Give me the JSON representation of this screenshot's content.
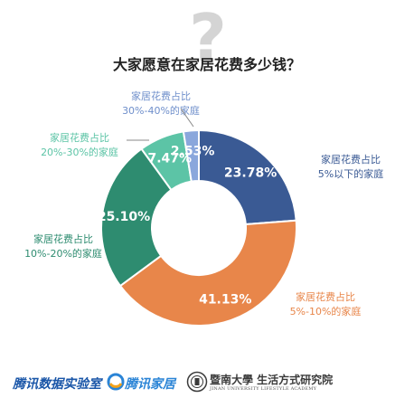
{
  "title": "大家愿意在家居花费多少钱？",
  "decoration": {
    "question_mark": "?"
  },
  "footer": {
    "brand_lab": "腾讯数据实验室",
    "brand_home": "腾讯家居",
    "brand_univ_cn": "暨南大學 生活方式研究院",
    "brand_univ_en": "JINAN UNIVERSITY LIFESTYLE ACADEMY"
  },
  "chart_data": {
    "type": "pie",
    "variant": "donut",
    "title": "大家愿意在家居花费多少钱？",
    "slices": [
      {
        "label": [
          "家居花费占比",
          "5%以下的家庭"
        ],
        "value": 23.78,
        "display": "23.78%",
        "color": "#3a5a94"
      },
      {
        "label": [
          "家居花费占比",
          "5%-10%的家庭"
        ],
        "value": 41.13,
        "display": "41.13%",
        "color": "#e8864a"
      },
      {
        "label": [
          "家居花费占比",
          "10%-20%的家庭"
        ],
        "value": 25.1,
        "display": "25.10%",
        "color": "#2e8c70"
      },
      {
        "label": [
          "家居花费占比",
          "20%-30%的家庭"
        ],
        "value": 7.47,
        "display": "7.47%",
        "color": "#5cc4a6"
      },
      {
        "label": [
          "家居花费占比",
          "30%-40%的家庭"
        ],
        "value": 2.53,
        "display": "2.53%",
        "color": "#8aa7dc"
      }
    ]
  }
}
